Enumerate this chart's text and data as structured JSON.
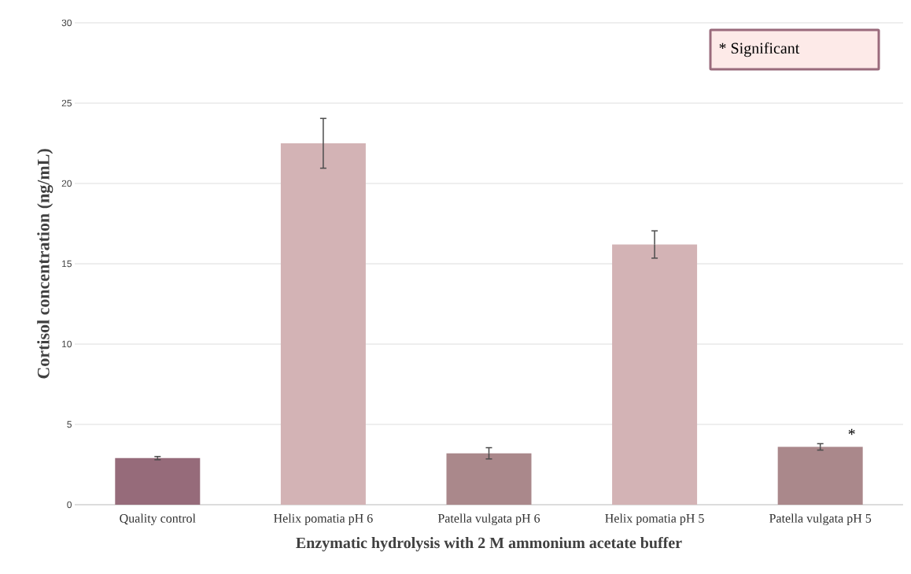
{
  "chart_data": {
    "type": "bar",
    "xlabel": "Enzymatic hydrolysis with 2 M ammonium acetate buffer",
    "ylabel": "Cortisol concentration (ng/mL)",
    "categories": [
      "Quality control",
      "Helix pomatia pH 6",
      "Patella vulgata pH 6",
      "Helix pomatia pH 5",
      "Patella vulgata pH 5"
    ],
    "values": [
      2.9,
      22.5,
      3.2,
      16.2,
      3.6
    ],
    "errors": [
      0.1,
      1.55,
      0.35,
      0.85,
      0.2
    ],
    "colors": [
      "#966b7a",
      "#d3b3b5",
      "#aa888b",
      "#d3b3b5",
      "#aa888b"
    ],
    "ylim": [
      0,
      30
    ],
    "yticks": [
      0,
      5,
      10,
      15,
      20,
      25,
      30
    ],
    "grid": "y",
    "annotations": [
      "*",
      "* Significant"
    ]
  }
}
